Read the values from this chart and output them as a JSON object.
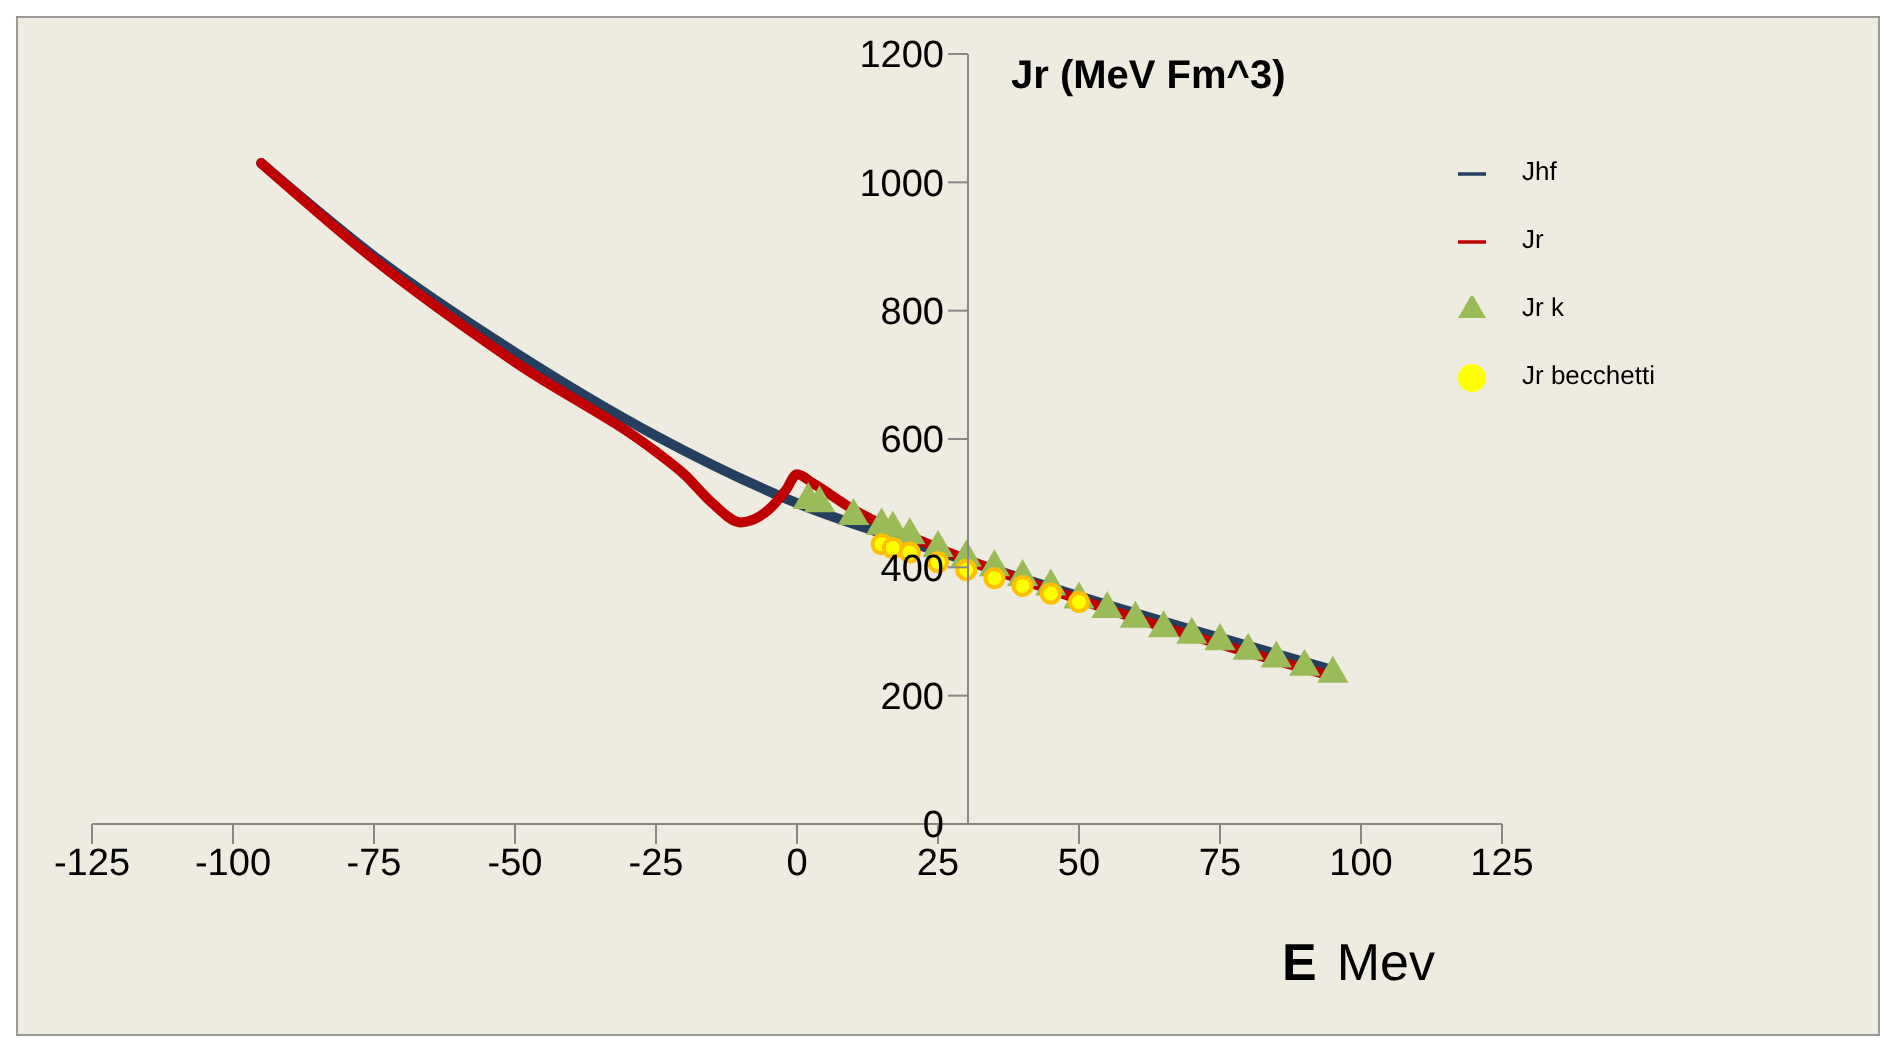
{
  "chart_data": {
    "type": "line",
    "title": "Jr (MeV Fm^3)",
    "xlabel": "E Mev",
    "xlim": [
      -125,
      125
    ],
    "xticks": [
      -125,
      -100,
      -75,
      -50,
      -25,
      0,
      25,
      50,
      75,
      100,
      125
    ],
    "ylim": [
      0,
      1200
    ],
    "yticks": [
      0,
      200,
      400,
      600,
      800,
      1000,
      1200
    ],
    "grid": false,
    "legend": "top right",
    "series": [
      {
        "name": "Jhf",
        "color": "#243f60",
        "marker": "none",
        "x": [
          -95,
          -75,
          -50,
          -25,
          0,
          25,
          50,
          75,
          95
        ],
        "values": [
          1030,
          885,
          735,
          605,
          500,
          425,
          355,
          290,
          240
        ]
      },
      {
        "name": "Jr",
        "color": "#c00000",
        "marker": "none",
        "x": [
          -95,
          -75,
          -50,
          -25,
          -20,
          -15,
          -10,
          -5,
          -2,
          0,
          3,
          10,
          25,
          50,
          75,
          95
        ],
        "values": [
          1030,
          880,
          720,
          580,
          545,
          500,
          470,
          490,
          520,
          545,
          530,
          490,
          430,
          350,
          280,
          230
        ]
      },
      {
        "name": "Jr k",
        "type": "scatter",
        "color": "#9bbb59",
        "marker": "triangle",
        "x": [
          2,
          4,
          10,
          15,
          17,
          20,
          25,
          30,
          35,
          40,
          45,
          50,
          55,
          60,
          65,
          70,
          75,
          80,
          85,
          90,
          95
        ],
        "values": [
          505,
          500,
          480,
          465,
          460,
          450,
          430,
          415,
          400,
          385,
          370,
          350,
          335,
          320,
          305,
          295,
          285,
          270,
          258,
          245,
          234
        ]
      },
      {
        "name": "Jr becchetti",
        "type": "scatter",
        "color": "#ffff00",
        "marker": "circle",
        "x": [
          15,
          17,
          20,
          25,
          30,
          35,
          40,
          45,
          50
        ],
        "values": [
          436,
          430,
          423,
          408,
          396,
          383,
          371,
          359,
          346
        ]
      }
    ]
  }
}
